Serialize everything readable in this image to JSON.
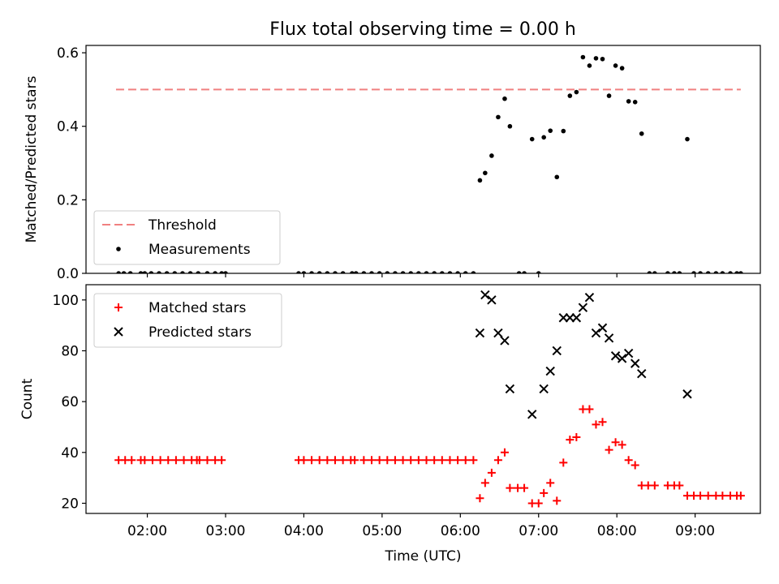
{
  "chart_data": [
    {
      "type": "scatter",
      "title": "Flux total observing time = 0.00 h",
      "ylabel": "Matched/Predicted stars",
      "xlabel": "",
      "ylim": [
        0,
        0.62
      ],
      "xlim": [
        "01:13",
        "09:50"
      ],
      "yticks": [
        "0.0",
        "0.2",
        "0.4",
        "0.6"
      ],
      "xticks": [
        "02:00",
        "03:00",
        "04:00",
        "05:00",
        "06:00",
        "07:00",
        "08:00",
        "09:00"
      ],
      "threshold": {
        "name": "Threshold",
        "value": 0.5,
        "x_range": [
          "01:36",
          "09:35"
        ],
        "color": "#f08080",
        "style": "dashed"
      },
      "legend": {
        "position": "lower-left",
        "entries": [
          "Threshold",
          "Measurements"
        ]
      },
      "series": [
        {
          "name": "Measurements",
          "color": "#000000",
          "marker": "dot",
          "points": [
            [
              "01:38",
              0
            ],
            [
              "01:42",
              0
            ],
            [
              "01:47",
              0
            ],
            [
              "01:55",
              0
            ],
            [
              "01:58",
              0
            ],
            [
              "02:03",
              0
            ],
            [
              "02:09",
              0
            ],
            [
              "02:15",
              0
            ],
            [
              "02:21",
              0
            ],
            [
              "02:27",
              0
            ],
            [
              "02:33",
              0
            ],
            [
              "02:39",
              0
            ],
            [
              "02:46",
              0
            ],
            [
              "02:52",
              0
            ],
            [
              "02:57",
              0
            ],
            [
              "03:00",
              0
            ],
            [
              "03:56",
              0
            ],
            [
              "04:00",
              0
            ],
            [
              "04:06",
              0
            ],
            [
              "04:12",
              0
            ],
            [
              "04:18",
              0
            ],
            [
              "04:24",
              0
            ],
            [
              "04:30",
              0
            ],
            [
              "04:37",
              0
            ],
            [
              "04:40",
              0
            ],
            [
              "04:46",
              0
            ],
            [
              "04:52",
              0
            ],
            [
              "04:58",
              0
            ],
            [
              "05:04",
              0
            ],
            [
              "05:10",
              0
            ],
            [
              "05:16",
              0
            ],
            [
              "05:22",
              0
            ],
            [
              "05:28",
              0
            ],
            [
              "05:34",
              0
            ],
            [
              "05:40",
              0
            ],
            [
              "05:46",
              0
            ],
            [
              "05:52",
              0
            ],
            [
              "05:58",
              0
            ],
            [
              "06:04",
              0
            ],
            [
              "06:10",
              0
            ],
            [
              "06:15",
              0.253
            ],
            [
              "06:19",
              0.273
            ],
            [
              "06:24",
              0.32
            ],
            [
              "06:29",
              0.425
            ],
            [
              "06:34",
              0.475
            ],
            [
              "06:38",
              0.4
            ],
            [
              "06:45",
              0
            ],
            [
              "06:49",
              0
            ],
            [
              "06:55",
              0.365
            ],
            [
              "07:00",
              0
            ],
            [
              "07:04",
              0.37
            ],
            [
              "07:09",
              0.388
            ],
            [
              "07:14",
              0.262
            ],
            [
              "07:19",
              0.387
            ],
            [
              "07:24",
              0.483
            ],
            [
              "07:29",
              0.493
            ],
            [
              "07:34",
              0.588
            ],
            [
              "07:39",
              0.565
            ],
            [
              "07:44",
              0.585
            ],
            [
              "07:49",
              0.583
            ],
            [
              "07:54",
              0.483
            ],
            [
              "07:59",
              0.565
            ],
            [
              "08:04",
              0.558
            ],
            [
              "08:09",
              0.468
            ],
            [
              "08:14",
              0.466
            ],
            [
              "08:19",
              0.38
            ],
            [
              "08:25",
              0
            ],
            [
              "08:29",
              0
            ],
            [
              "08:39",
              0
            ],
            [
              "08:44",
              0
            ],
            [
              "08:48",
              0
            ],
            [
              "08:54",
              0.365
            ],
            [
              "08:59",
              0
            ],
            [
              "09:04",
              0
            ],
            [
              "09:10",
              0
            ],
            [
              "09:16",
              0
            ],
            [
              "09:21",
              0
            ],
            [
              "09:27",
              0
            ],
            [
              "09:32",
              0
            ],
            [
              "09:35",
              0
            ]
          ]
        }
      ]
    },
    {
      "type": "scatter",
      "title": "",
      "ylabel": "Count",
      "xlabel": "Time (UTC)",
      "ylim": [
        16,
        106
      ],
      "xlim": [
        "01:13",
        "09:50"
      ],
      "yticks": [
        "20",
        "40",
        "60",
        "80",
        "100"
      ],
      "xticks": [
        "02:00",
        "03:00",
        "04:00",
        "05:00",
        "06:00",
        "07:00",
        "08:00",
        "09:00"
      ],
      "legend": {
        "position": "top-left",
        "entries": [
          "Matched stars",
          "Predicted stars"
        ]
      },
      "series": [
        {
          "name": "Matched stars",
          "color": "#ff0000",
          "marker": "plus",
          "points": [
            [
              "01:38",
              37
            ],
            [
              "01:43",
              37
            ],
            [
              "01:48",
              37
            ],
            [
              "01:55",
              37
            ],
            [
              "01:58",
              37
            ],
            [
              "02:04",
              37
            ],
            [
              "02:10",
              37
            ],
            [
              "02:16",
              37
            ],
            [
              "02:22",
              37
            ],
            [
              "02:28",
              37
            ],
            [
              "02:34",
              37
            ],
            [
              "02:38",
              37
            ],
            [
              "02:40",
              37
            ],
            [
              "02:46",
              37
            ],
            [
              "02:52",
              37
            ],
            [
              "02:57",
              37
            ],
            [
              "03:56",
              37
            ],
            [
              "04:00",
              37
            ],
            [
              "04:06",
              37
            ],
            [
              "04:12",
              37
            ],
            [
              "04:18",
              37
            ],
            [
              "04:24",
              37
            ],
            [
              "04:30",
              37
            ],
            [
              "04:36",
              37
            ],
            [
              "04:39",
              37
            ],
            [
              "04:46",
              37
            ],
            [
              "04:52",
              37
            ],
            [
              "04:58",
              37
            ],
            [
              "05:04",
              37
            ],
            [
              "05:10",
              37
            ],
            [
              "05:16",
              37
            ],
            [
              "05:22",
              37
            ],
            [
              "05:28",
              37
            ],
            [
              "05:34",
              37
            ],
            [
              "05:40",
              37
            ],
            [
              "05:46",
              37
            ],
            [
              "05:52",
              37
            ],
            [
              "05:58",
              37
            ],
            [
              "06:04",
              37
            ],
            [
              "06:10",
              37
            ],
            [
              "06:15",
              22
            ],
            [
              "06:19",
              28
            ],
            [
              "06:24",
              32
            ],
            [
              "06:29",
              37
            ],
            [
              "06:34",
              40
            ],
            [
              "06:38",
              26
            ],
            [
              "06:44",
              26
            ],
            [
              "06:49",
              26
            ],
            [
              "06:55",
              20
            ],
            [
              "07:00",
              20
            ],
            [
              "07:04",
              24
            ],
            [
              "07:09",
              28
            ],
            [
              "07:14",
              21
            ],
            [
              "07:19",
              36
            ],
            [
              "07:24",
              45
            ],
            [
              "07:29",
              46
            ],
            [
              "07:34",
              57
            ],
            [
              "07:39",
              57
            ],
            [
              "07:44",
              51
            ],
            [
              "07:49",
              52
            ],
            [
              "07:54",
              41
            ],
            [
              "07:59",
              44
            ],
            [
              "08:04",
              43
            ],
            [
              "08:09",
              37
            ],
            [
              "08:14",
              35
            ],
            [
              "08:19",
              27
            ],
            [
              "08:24",
              27
            ],
            [
              "08:29",
              27
            ],
            [
              "08:39",
              27
            ],
            [
              "08:44",
              27
            ],
            [
              "08:48",
              27
            ],
            [
              "08:54",
              23
            ],
            [
              "08:59",
              23
            ],
            [
              "09:04",
              23
            ],
            [
              "09:10",
              23
            ],
            [
              "09:16",
              23
            ],
            [
              "09:21",
              23
            ],
            [
              "09:27",
              23
            ],
            [
              "09:32",
              23
            ],
            [
              "09:35",
              23
            ]
          ]
        },
        {
          "name": "Predicted stars",
          "color": "#000000",
          "marker": "x",
          "points": [
            [
              "06:15",
              87
            ],
            [
              "06:19",
              102
            ],
            [
              "06:24",
              100
            ],
            [
              "06:29",
              87
            ],
            [
              "06:34",
              84
            ],
            [
              "06:38",
              65
            ],
            [
              "06:55",
              55
            ],
            [
              "07:04",
              65
            ],
            [
              "07:09",
              72
            ],
            [
              "07:14",
              80
            ],
            [
              "07:19",
              93
            ],
            [
              "07:24",
              93
            ],
            [
              "07:29",
              93
            ],
            [
              "07:34",
              97
            ],
            [
              "07:39",
              101
            ],
            [
              "07:44",
              87
            ],
            [
              "07:49",
              89
            ],
            [
              "07:54",
              85
            ],
            [
              "07:59",
              78
            ],
            [
              "08:04",
              77
            ],
            [
              "08:09",
              79
            ],
            [
              "08:14",
              75
            ],
            [
              "08:19",
              71
            ],
            [
              "08:54",
              63
            ]
          ]
        }
      ]
    }
  ]
}
